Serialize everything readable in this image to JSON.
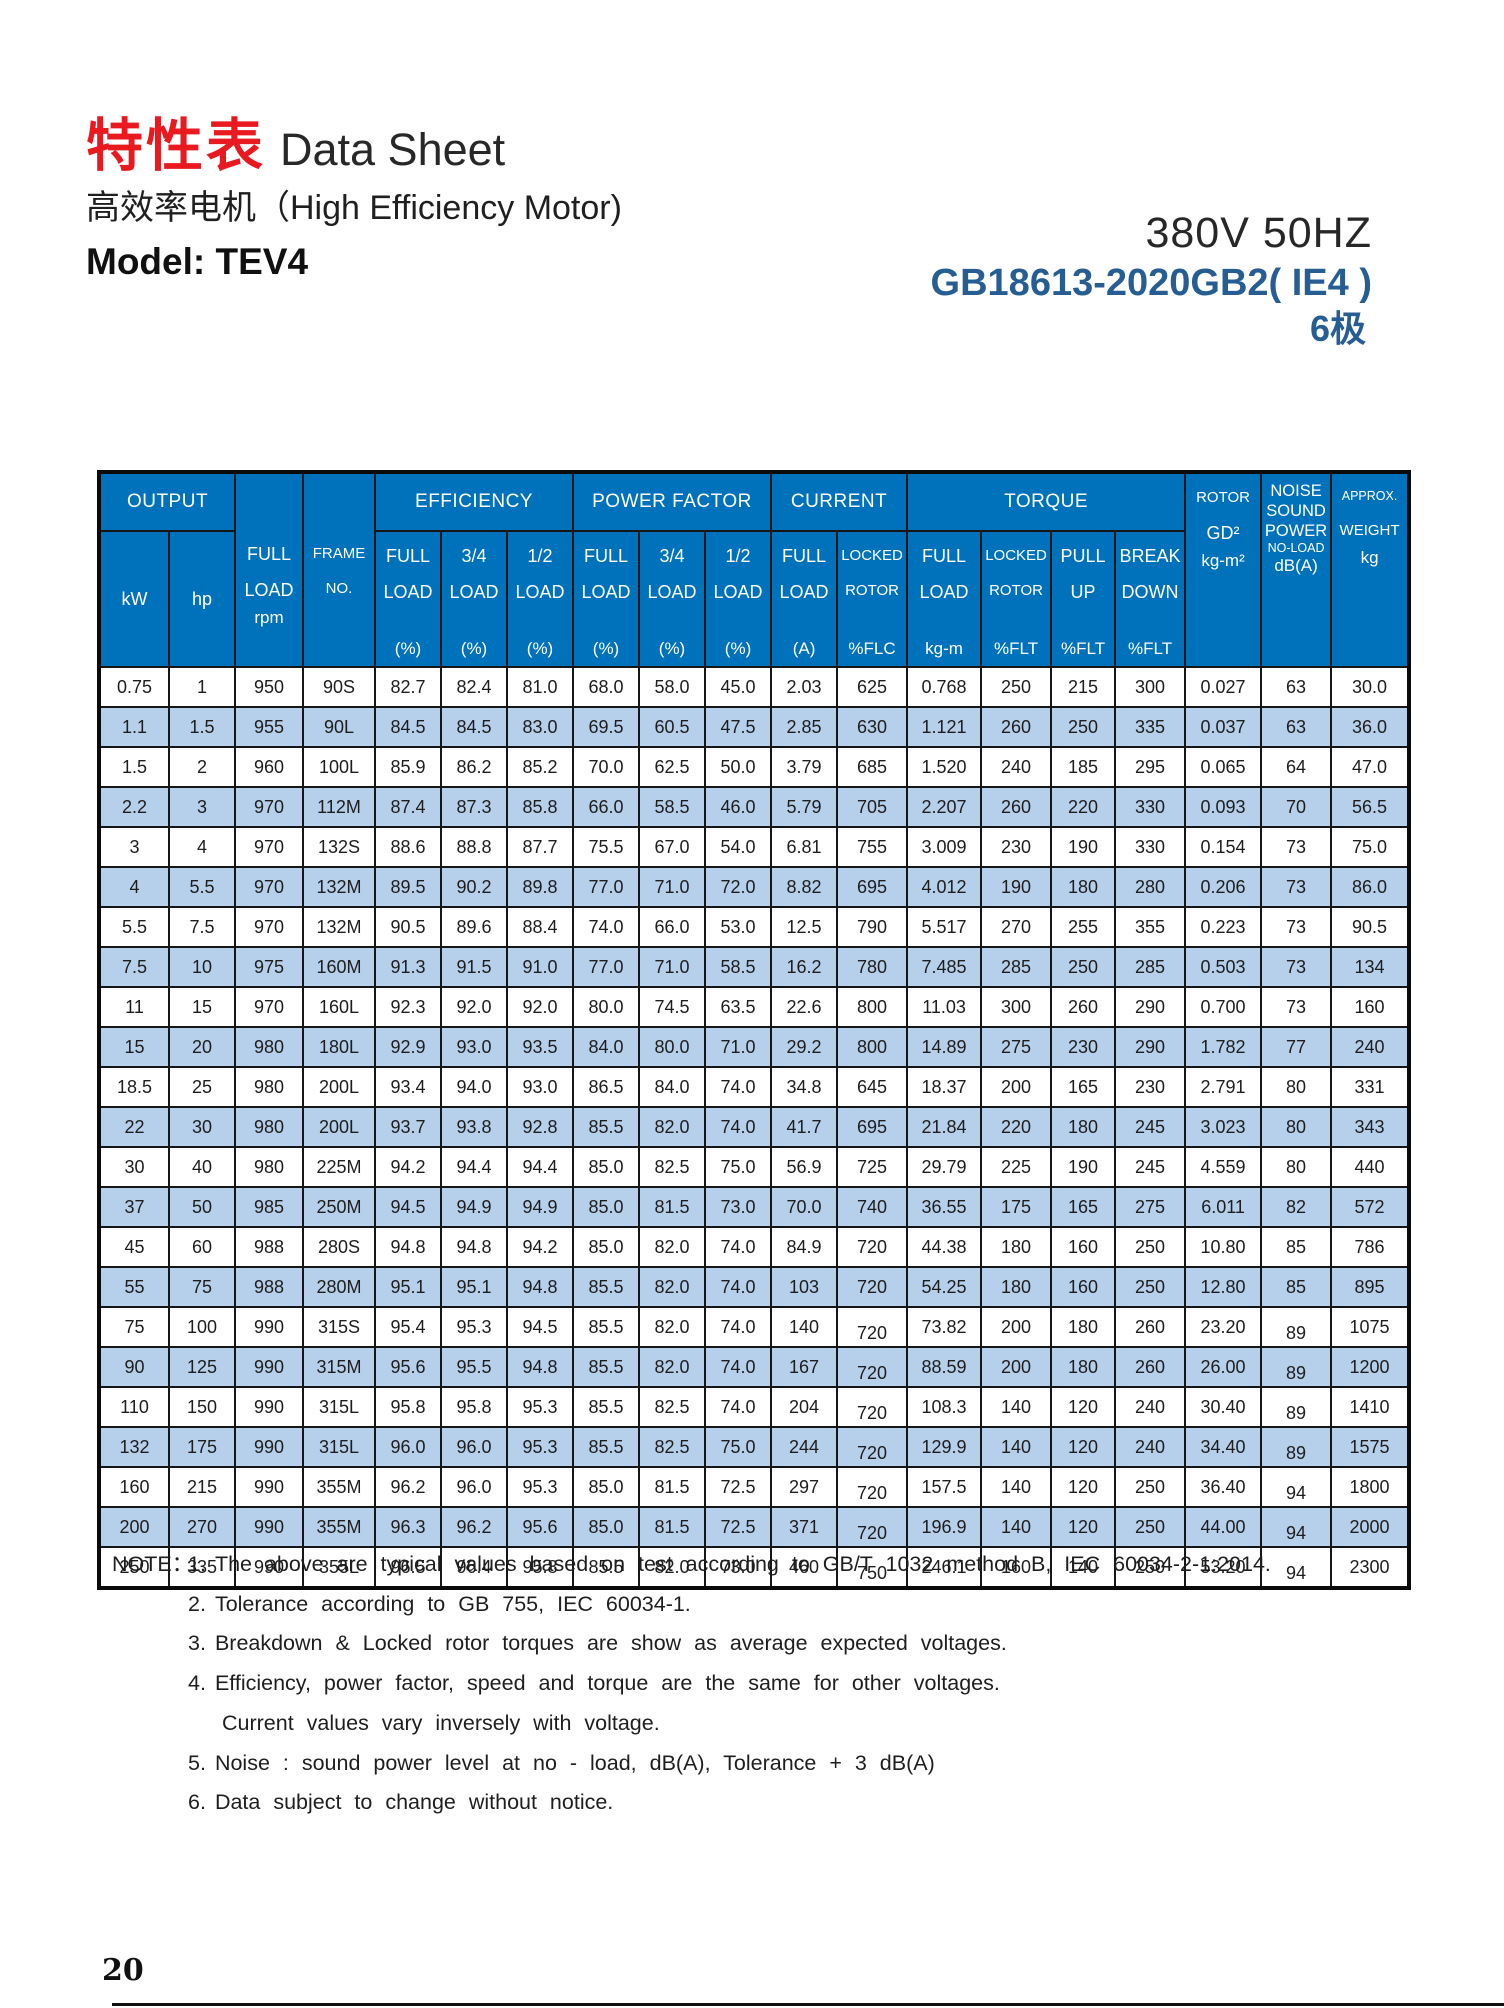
{
  "masthead": {
    "title_zh": "特性表",
    "title_en": "Data Sheet",
    "subtitle": "高效率电机（High Efficiency Motor)",
    "model": "Model: TEV4",
    "voltage": "380V  50HZ",
    "standard": "GB18613-2020GB2( IE4 )",
    "poles": "6极"
  },
  "colors": {
    "title_red": "#e8191f",
    "accent_blue": "#265e93",
    "header_blue": "#0072bc",
    "row_alt_blue": "#b6cfeb"
  },
  "table": {
    "groups": {
      "output": "OUTPUT",
      "efficiency": "EFFICIENCY",
      "power_factor": "POWER FACTOR",
      "current": "CURRENT",
      "torque": "TORQUE"
    },
    "cols": {
      "kw": "kW",
      "hp": "hp",
      "full_load_rpm": {
        "l1": "FULL",
        "l2": "LOAD",
        "unit": "rpm"
      },
      "frame_no": {
        "l1": "FRAME",
        "l2": "NO."
      },
      "eff_full": {
        "l1": "FULL",
        "l2": "LOAD",
        "unit": "(%)"
      },
      "eff_3_4": {
        "l1": "3/4",
        "l2": "LOAD",
        "unit": "(%)"
      },
      "eff_1_2": {
        "l1": "1/2",
        "l2": "LOAD",
        "unit": "(%)"
      },
      "pf_full": {
        "l1": "FULL",
        "l2": "LOAD",
        "unit": "(%)"
      },
      "pf_3_4": {
        "l1": "3/4",
        "l2": "LOAD",
        "unit": "(%)"
      },
      "pf_1_2": {
        "l1": "1/2",
        "l2": "LOAD",
        "unit": "(%)"
      },
      "cur_full": {
        "l1": "FULL",
        "l2": "LOAD",
        "unit": "(A)"
      },
      "cur_locked": {
        "l1": "LOCKED",
        "l2": "ROTOR",
        "unit": "%FLC"
      },
      "tq_full": {
        "l1": "FULL",
        "l2": "LOAD",
        "unit": "kg-m"
      },
      "tq_locked": {
        "l1": "LOCKED",
        "l2": "ROTOR",
        "unit": "%FLT"
      },
      "tq_pull_up": {
        "l1": "PULL",
        "l2": "UP",
        "unit": "%FLT"
      },
      "tq_break_down": {
        "l1": "BREAK",
        "l2": "DOWN",
        "unit": "%FLT"
      },
      "rotor": {
        "l1": "ROTOR",
        "mid": "GD²",
        "unit": "kg-m²"
      },
      "noise": {
        "l1": "NOISE",
        "l2": "SOUND",
        "l3": "POWER",
        "l4": "NO-LOAD",
        "unit": "dB(A)"
      },
      "weight": {
        "l1": "APPROX.",
        "l2": "WEIGHT",
        "unit": "kg"
      }
    },
    "column_keys": [
      "kw",
      "hp",
      "rpm",
      "frame_no",
      "eff_full",
      "eff_3_4",
      "eff_1_2",
      "pf_full",
      "pf_3_4",
      "pf_1_2",
      "current_full",
      "current_locked_rotor",
      "torque_full",
      "torque_locked_rotor",
      "torque_pull_up",
      "torque_break_down",
      "rotor_gd2",
      "noise",
      "weight"
    ],
    "rows": [
      [
        "0.75",
        "1",
        "950",
        "90S",
        "82.7",
        "82.4",
        "81.0",
        "68.0",
        "58.0",
        "45.0",
        "2.03",
        "625",
        "0.768",
        "250",
        "215",
        "300",
        "0.027",
        "63",
        "30.0"
      ],
      [
        "1.1",
        "1.5",
        "955",
        "90L",
        "84.5",
        "84.5",
        "83.0",
        "69.5",
        "60.5",
        "47.5",
        "2.85",
        "630",
        "1.121",
        "260",
        "250",
        "335",
        "0.037",
        "63",
        "36.0"
      ],
      [
        "1.5",
        "2",
        "960",
        "100L",
        "85.9",
        "86.2",
        "85.2",
        "70.0",
        "62.5",
        "50.0",
        "3.79",
        "685",
        "1.520",
        "240",
        "185",
        "295",
        "0.065",
        "64",
        "47.0"
      ],
      [
        "2.2",
        "3",
        "970",
        "112M",
        "87.4",
        "87.3",
        "85.8",
        "66.0",
        "58.5",
        "46.0",
        "5.79",
        "705",
        "2.207",
        "260",
        "220",
        "330",
        "0.093",
        "70",
        "56.5"
      ],
      [
        "3",
        "4",
        "970",
        "132S",
        "88.6",
        "88.8",
        "87.7",
        "75.5",
        "67.0",
        "54.0",
        "6.81",
        "755",
        "3.009",
        "230",
        "190",
        "330",
        "0.154",
        "73",
        "75.0"
      ],
      [
        "4",
        "5.5",
        "970",
        "132M",
        "89.5",
        "90.2",
        "89.8",
        "77.0",
        "71.0",
        "72.0",
        "8.82",
        "695",
        "4.012",
        "190",
        "180",
        "280",
        "0.206",
        "73",
        "86.0"
      ],
      [
        "5.5",
        "7.5",
        "970",
        "132M",
        "90.5",
        "89.6",
        "88.4",
        "74.0",
        "66.0",
        "53.0",
        "12.5",
        "790",
        "5.517",
        "270",
        "255",
        "355",
        "0.223",
        "73",
        "90.5"
      ],
      [
        "7.5",
        "10",
        "975",
        "160M",
        "91.3",
        "91.5",
        "91.0",
        "77.0",
        "71.0",
        "58.5",
        "16.2",
        "780",
        "7.485",
        "285",
        "250",
        "285",
        "0.503",
        "73",
        "134"
      ],
      [
        "11",
        "15",
        "970",
        "160L",
        "92.3",
        "92.0",
        "92.0",
        "80.0",
        "74.5",
        "63.5",
        "22.6",
        "800",
        "11.03",
        "300",
        "260",
        "290",
        "0.700",
        "73",
        "160"
      ],
      [
        "15",
        "20",
        "980",
        "180L",
        "92.9",
        "93.0",
        "93.5",
        "84.0",
        "80.0",
        "71.0",
        "29.2",
        "800",
        "14.89",
        "275",
        "230",
        "290",
        "1.782",
        "77",
        "240"
      ],
      [
        "18.5",
        "25",
        "980",
        "200L",
        "93.4",
        "94.0",
        "93.0",
        "86.5",
        "84.0",
        "74.0",
        "34.8",
        "645",
        "18.37",
        "200",
        "165",
        "230",
        "2.791",
        "80",
        "331"
      ],
      [
        "22",
        "30",
        "980",
        "200L",
        "93.7",
        "93.8",
        "92.8",
        "85.5",
        "82.0",
        "74.0",
        "41.7",
        "695",
        "21.84",
        "220",
        "180",
        "245",
        "3.023",
        "80",
        "343"
      ],
      [
        "30",
        "40",
        "980",
        "225M",
        "94.2",
        "94.4",
        "94.4",
        "85.0",
        "82.5",
        "75.0",
        "56.9",
        "725",
        "29.79",
        "225",
        "190",
        "245",
        "4.559",
        "80",
        "440"
      ],
      [
        "37",
        "50",
        "985",
        "250M",
        "94.5",
        "94.9",
        "94.9",
        "85.0",
        "81.5",
        "73.0",
        "70.0",
        "740",
        "36.55",
        "175",
        "165",
        "275",
        "6.011",
        "82",
        "572"
      ],
      [
        "45",
        "60",
        "988",
        "280S",
        "94.8",
        "94.8",
        "94.2",
        "85.0",
        "82.0",
        "74.0",
        "84.9",
        "720",
        "44.38",
        "180",
        "160",
        "250",
        "10.80",
        "85",
        "786"
      ],
      [
        "55",
        "75",
        "988",
        "280M",
        "95.1",
        "95.1",
        "94.8",
        "85.5",
        "82.0",
        "74.0",
        "103",
        "720",
        "54.25",
        "180",
        "160",
        "250",
        "12.80",
        "85",
        "895"
      ],
      [
        "75",
        "100",
        "990",
        "315S",
        "95.4",
        "95.3",
        "94.5",
        "85.5",
        "82.0",
        "74.0",
        "140",
        "720",
        "73.82",
        "200",
        "180",
        "260",
        "23.20",
        "89",
        "1075"
      ],
      [
        "90",
        "125",
        "990",
        "315M",
        "95.6",
        "95.5",
        "94.8",
        "85.5",
        "82.0",
        "74.0",
        "167",
        "720",
        "88.59",
        "200",
        "180",
        "260",
        "26.00",
        "89",
        "1200"
      ],
      [
        "110",
        "150",
        "990",
        "315L",
        "95.8",
        "95.8",
        "95.3",
        "85.5",
        "82.5",
        "74.0",
        "204",
        "720",
        "108.3",
        "140",
        "120",
        "240",
        "30.40",
        "89",
        "1410"
      ],
      [
        "132",
        "175",
        "990",
        "315L",
        "96.0",
        "96.0",
        "95.3",
        "85.5",
        "82.5",
        "75.0",
        "244",
        "720",
        "129.9",
        "140",
        "120",
        "240",
        "34.40",
        "89",
        "1575"
      ],
      [
        "160",
        "215",
        "990",
        "355M",
        "96.2",
        "96.0",
        "95.3",
        "85.0",
        "81.5",
        "72.5",
        "297",
        "720",
        "157.5",
        "140",
        "120",
        "250",
        "36.40",
        "94",
        "1800"
      ],
      [
        "200",
        "270",
        "990",
        "355M",
        "96.3",
        "96.2",
        "95.6",
        "85.0",
        "81.5",
        "72.5",
        "371",
        "720",
        "196.9",
        "140",
        "120",
        "250",
        "44.00",
        "94",
        "2000"
      ],
      [
        "250",
        "335",
        "990",
        "355L",
        "96.5",
        "96.4",
        "95.8",
        "85.5",
        "82.0",
        "73.0",
        "460",
        "750",
        "246.1",
        "160",
        "140",
        "250",
        "53.20",
        "94",
        "2300"
      ]
    ]
  },
  "notes": {
    "label": "NOTE：",
    "items": [
      {
        "num": "1.",
        "text": "The above are typical values based on test according to GB/T 1032 method B, IEC 60034-2-1:2014."
      },
      {
        "num": "2.",
        "text": "Tolerance according to GB 755, IEC 60034-1."
      },
      {
        "num": "3.",
        "text": "Breakdown & Locked rotor torques are show as average expected voltages."
      },
      {
        "num": "4.",
        "text": "Efficiency, power factor, speed and torque are the same for other voltages.",
        "cont": "Current values vary inversely with voltage."
      },
      {
        "num": "5.",
        "text": "Noise : sound power level at no - load, dB(A), Tolerance + 3 dB(A)"
      },
      {
        "num": "6.",
        "text": "Data subject to change without notice."
      }
    ]
  },
  "page": {
    "number": "20"
  }
}
